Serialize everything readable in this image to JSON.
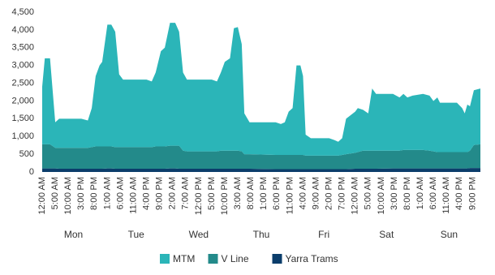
{
  "chart_data": {
    "type": "stacked_area",
    "x": [
      0,
      1,
      3,
      5,
      6.5,
      15,
      17.5,
      19,
      20.5,
      22,
      23,
      25,
      26.5,
      28,
      29.5,
      31,
      40,
      42,
      43.5,
      45.5,
      47,
      49,
      51,
      52.5,
      54,
      55.5,
      65,
      67,
      68.5,
      70,
      72,
      73.5,
      75,
      76.5,
      77.5,
      79.5,
      89.5,
      91.5,
      93,
      94.5,
      96,
      97.5,
      99,
      100,
      101,
      103,
      110,
      112,
      113.5,
      115,
      116.5,
      120,
      121,
      123,
      125,
      126.5,
      128,
      134.5,
      137,
      138.5,
      140,
      142,
      146,
      148.5,
      150,
      151.5,
      152.5,
      159,
      161,
      162,
      163,
      164,
      165.5,
      168
    ],
    "series": [
      {
        "name": "Yarra Trams",
        "color": "#0b3d6b",
        "values": [
          100,
          100,
          100,
          100,
          90,
          90,
          90,
          90,
          90,
          90,
          90,
          100,
          100,
          90,
          90,
          90,
          90,
          90,
          90,
          90,
          90,
          100,
          100,
          90,
          90,
          90,
          90,
          90,
          90,
          90,
          90,
          90,
          90,
          90,
          90,
          90,
          80,
          80,
          80,
          80,
          80,
          80,
          80,
          80,
          80,
          80,
          80,
          80,
          80,
          80,
          80,
          90,
          90,
          90,
          90,
          90,
          90,
          100,
          100,
          100,
          100,
          100,
          100,
          100,
          100,
          100,
          100,
          100,
          100,
          100,
          100,
          110,
          110,
          110
        ]
      },
      {
        "name": "V Line",
        "color": "#238a8a",
        "values": [
          680,
          680,
          680,
          580,
          590,
          590,
          590,
          610,
          630,
          630,
          630,
          620,
          620,
          610,
          610,
          610,
          610,
          610,
          630,
          630,
          630,
          640,
          640,
          650,
          510,
          490,
          490,
          490,
          510,
          510,
          510,
          510,
          510,
          490,
          410,
          410,
          400,
          400,
          400,
          400,
          400,
          400,
          400,
          400,
          380,
          380,
          380,
          380,
          380,
          400,
          420,
          450,
          470,
          510,
          510,
          510,
          510,
          500,
          500,
          520,
          520,
          520,
          520,
          500,
          480,
          460,
          460,
          460,
          460,
          460,
          460,
          490,
          650,
          670
        ]
      },
      {
        "name": "MTM",
        "color": "#2bb5b8",
        "values": [
          1620,
          2420,
          2420,
          720,
          820,
          820,
          770,
          1100,
          1980,
          2280,
          2380,
          3430,
          3430,
          3250,
          2050,
          1900,
          1900,
          1850,
          2080,
          2680,
          2780,
          3460,
          3460,
          3210,
          2200,
          2020,
          2020,
          1970,
          2200,
          2500,
          2600,
          3450,
          3480,
          3020,
          1150,
          900,
          920,
          870,
          920,
          1220,
          1320,
          2520,
          2520,
          2220,
          590,
          490,
          490,
          440,
          390,
          470,
          1000,
          1160,
          1240,
          1150,
          1050,
          1750,
          1600,
          1600,
          1500,
          1580,
          1480,
          1530,
          1580,
          1550,
          1420,
          1540,
          1390,
          1390,
          1240,
          1090,
          1340,
          1250,
          1540,
          1570
        ]
      }
    ],
    "legend_order": [
      2,
      1,
      0
    ],
    "xlim": [
      0,
      168
    ],
    "xticks": [
      {
        "value": 0,
        "label": "12:00 AM"
      },
      {
        "value": 5,
        "label": "5:00 AM"
      },
      {
        "value": 10,
        "label": "10:00 AM"
      },
      {
        "value": 15,
        "label": "3:00 PM"
      },
      {
        "value": 20,
        "label": "8:00 PM"
      },
      {
        "value": 25,
        "label": "1:00 AM"
      },
      {
        "value": 30,
        "label": "6:00 AM"
      },
      {
        "value": 35,
        "label": "11:00 AM"
      },
      {
        "value": 40,
        "label": "4:00 PM"
      },
      {
        "value": 45,
        "label": "9:00 PM"
      },
      {
        "value": 50,
        "label": "2:00 AM"
      },
      {
        "value": 55,
        "label": "7:00 AM"
      },
      {
        "value": 60,
        "label": "12:00 PM"
      },
      {
        "value": 65,
        "label": "5:00 PM"
      },
      {
        "value": 70,
        "label": "10:00 PM"
      },
      {
        "value": 75,
        "label": "3:00 AM"
      },
      {
        "value": 80,
        "label": "8:00 AM"
      },
      {
        "value": 85,
        "label": "1:00 PM"
      },
      {
        "value": 90,
        "label": "6:00 PM"
      },
      {
        "value": 95,
        "label": "11:00 PM"
      },
      {
        "value": 100,
        "label": "4:00 AM"
      },
      {
        "value": 105,
        "label": "9:00 AM"
      },
      {
        "value": 110,
        "label": "2:00 PM"
      },
      {
        "value": 115,
        "label": "7:00 PM"
      },
      {
        "value": 120,
        "label": "12:00 AM"
      },
      {
        "value": 125,
        "label": "5:00 AM"
      },
      {
        "value": 130,
        "label": "10:00 AM"
      },
      {
        "value": 135,
        "label": "3:00 PM"
      },
      {
        "value": 140,
        "label": "8:00 PM"
      },
      {
        "value": 145,
        "label": "1:00 AM"
      },
      {
        "value": 150,
        "label": "6:00 AM"
      },
      {
        "value": 155,
        "label": "11:00 AM"
      },
      {
        "value": 160,
        "label": "4:00 PM"
      },
      {
        "value": 165,
        "label": "9:00 PM"
      }
    ],
    "days": [
      "Mon",
      "Tue",
      "Wed",
      "Thu",
      "Fri",
      "Sat",
      "Sun"
    ],
    "ylim": [
      0,
      4500
    ],
    "yticks": [
      0,
      500,
      {
        "value": 1000,
        "label": "1,000"
      },
      {
        "value": 1500,
        "label": "1,500"
      },
      {
        "value": 2000,
        "label": "2,000"
      },
      {
        "value": 2500,
        "label": "2,500"
      },
      {
        "value": 3000,
        "label": "3,000"
      },
      {
        "value": 3500,
        "label": "3,500"
      },
      {
        "value": 4000,
        "label": "4,000"
      },
      {
        "value": 4500,
        "label": "4,500"
      }
    ],
    "grid": false
  }
}
